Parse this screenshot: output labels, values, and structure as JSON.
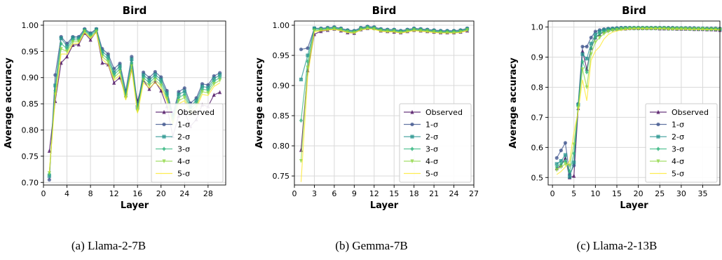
{
  "legend_labels": [
    "Observed",
    "1-σ",
    "2-σ",
    "3-σ",
    "4-σ",
    "5-σ"
  ],
  "legend_colors": [
    "#46085c",
    "#3b528b",
    "#21918c",
    "#2fb47c",
    "#8fd744",
    "#fde725"
  ],
  "chart_data": [
    {
      "type": "line",
      "title": "Bird",
      "xlabel": "Layer",
      "ylabel": "Average accuracy",
      "caption": "(a) Llama-2-7B",
      "xlim": [
        0,
        31
      ],
      "ylim": [
        0.695,
        1.008
      ],
      "xticks": [
        0,
        4,
        8,
        12,
        16,
        20,
        24,
        28
      ],
      "yticks": [
        0.7,
        0.75,
        0.8,
        0.85,
        0.9,
        0.95,
        1.0
      ],
      "ytick_labels": [
        "0.70",
        "0.75",
        "0.80",
        "0.85",
        "0.90",
        "0.95",
        "1.00"
      ],
      "grid": true,
      "legend_position": "lower-right",
      "x": [
        1,
        2,
        3,
        4,
        5,
        6,
        7,
        8,
        9,
        10,
        11,
        12,
        13,
        14,
        15,
        16,
        17,
        18,
        19,
        20,
        21,
        22,
        23,
        24,
        25,
        26,
        27,
        28,
        29,
        30
      ],
      "series": [
        {
          "name": "Observed",
          "values": [
            0.76,
            0.855,
            0.928,
            0.94,
            0.962,
            0.963,
            0.985,
            0.972,
            0.988,
            0.928,
            0.925,
            0.89,
            0.9,
            0.866,
            0.915,
            0.855,
            0.895,
            0.878,
            0.892,
            0.875,
            0.845,
            0.788,
            0.827,
            0.835,
            0.807,
            0.82,
            0.848,
            0.845,
            0.867,
            0.872
          ]
        },
        {
          "name": "1-σ",
          "values": [
            0.705,
            0.905,
            0.978,
            0.965,
            0.978,
            0.978,
            0.993,
            0.985,
            0.993,
            0.955,
            0.945,
            0.917,
            0.927,
            0.875,
            0.94,
            0.846,
            0.91,
            0.9,
            0.911,
            0.901,
            0.875,
            0.829,
            0.873,
            0.88,
            0.851,
            0.861,
            0.888,
            0.886,
            0.903,
            0.909
          ]
        },
        {
          "name": "2-σ",
          "values": [
            0.712,
            0.885,
            0.975,
            0.96,
            0.976,
            0.975,
            0.991,
            0.983,
            0.992,
            0.95,
            0.94,
            0.91,
            0.922,
            0.87,
            0.935,
            0.844,
            0.905,
            0.895,
            0.906,
            0.896,
            0.87,
            0.825,
            0.868,
            0.874,
            0.846,
            0.856,
            0.883,
            0.881,
            0.898,
            0.905
          ]
        },
        {
          "name": "3-σ",
          "values": [
            0.716,
            0.875,
            0.965,
            0.955,
            0.972,
            0.972,
            0.99,
            0.98,
            0.99,
            0.945,
            0.935,
            0.905,
            0.917,
            0.865,
            0.928,
            0.84,
            0.9,
            0.89,
            0.901,
            0.891,
            0.865,
            0.82,
            0.862,
            0.868,
            0.841,
            0.851,
            0.878,
            0.876,
            0.893,
            0.9
          ]
        },
        {
          "name": "4-σ",
          "values": [
            0.718,
            0.868,
            0.955,
            0.95,
            0.968,
            0.969,
            0.988,
            0.977,
            0.988,
            0.94,
            0.93,
            0.9,
            0.911,
            0.861,
            0.922,
            0.836,
            0.895,
            0.885,
            0.896,
            0.885,
            0.86,
            0.815,
            0.856,
            0.862,
            0.836,
            0.846,
            0.873,
            0.871,
            0.888,
            0.895
          ]
        },
        {
          "name": "5-σ",
          "values": [
            0.72,
            0.86,
            0.945,
            0.945,
            0.964,
            0.966,
            0.986,
            0.975,
            0.986,
            0.935,
            0.925,
            0.895,
            0.905,
            0.857,
            0.916,
            0.832,
            0.89,
            0.88,
            0.891,
            0.88,
            0.855,
            0.81,
            0.85,
            0.856,
            0.831,
            0.841,
            0.868,
            0.866,
            0.883,
            0.89
          ]
        }
      ]
    },
    {
      "type": "line",
      "title": "Bird",
      "xlabel": "Layer",
      "ylabel": "Average accuracy",
      "caption": "(b) Gemma-7B",
      "xlim": [
        0,
        27
      ],
      "ylim": [
        0.735,
        1.007
      ],
      "xticks": [
        0,
        3,
        6,
        9,
        12,
        15,
        18,
        21,
        24,
        27
      ],
      "yticks": [
        0.75,
        0.8,
        0.85,
        0.9,
        0.95,
        1.0
      ],
      "ytick_labels": [
        "0.75",
        "0.80",
        "0.85",
        "0.90",
        "0.95",
        "1.00"
      ],
      "grid": true,
      "legend_position": "lower-right",
      "x": [
        1,
        2,
        3,
        4,
        5,
        6,
        7,
        8,
        9,
        10,
        11,
        12,
        13,
        14,
        15,
        16,
        17,
        18,
        19,
        20,
        21,
        22,
        23,
        24,
        25,
        26
      ],
      "series": [
        {
          "name": "Observed",
          "values": [
            0.793,
            0.925,
            0.985,
            0.99,
            0.992,
            0.994,
            0.991,
            0.988,
            0.987,
            0.993,
            0.995,
            0.995,
            0.991,
            0.99,
            0.989,
            0.988,
            0.99,
            0.992,
            0.991,
            0.99,
            0.989,
            0.988,
            0.988,
            0.988,
            0.989,
            0.991
          ]
        },
        {
          "name": "1-σ",
          "values": [
            0.96,
            0.962,
            0.995,
            0.995,
            0.996,
            0.997,
            0.995,
            0.992,
            0.991,
            0.996,
            0.998,
            0.997,
            0.994,
            0.993,
            0.993,
            0.991,
            0.993,
            0.995,
            0.994,
            0.993,
            0.992,
            0.991,
            0.991,
            0.991,
            0.992,
            0.995
          ]
        },
        {
          "name": "2-σ",
          "values": [
            0.91,
            0.95,
            0.995,
            0.994,
            0.995,
            0.996,
            0.994,
            0.991,
            0.99,
            0.995,
            0.997,
            0.996,
            0.993,
            0.992,
            0.992,
            0.99,
            0.992,
            0.994,
            0.993,
            0.992,
            0.991,
            0.99,
            0.99,
            0.99,
            0.991,
            0.994
          ]
        },
        {
          "name": "3-σ",
          "values": [
            0.842,
            0.94,
            0.993,
            0.993,
            0.994,
            0.995,
            0.993,
            0.99,
            0.989,
            0.994,
            0.996,
            0.995,
            0.992,
            0.991,
            0.991,
            0.989,
            0.991,
            0.993,
            0.992,
            0.991,
            0.99,
            0.989,
            0.989,
            0.989,
            0.99,
            0.993
          ]
        },
        {
          "name": "4-σ",
          "values": [
            0.775,
            0.93,
            0.991,
            0.992,
            0.993,
            0.994,
            0.992,
            0.989,
            0.988,
            0.993,
            0.995,
            0.994,
            0.991,
            0.99,
            0.99,
            0.988,
            0.99,
            0.992,
            0.991,
            0.99,
            0.989,
            0.988,
            0.988,
            0.988,
            0.989,
            0.992
          ]
        },
        {
          "name": "5-σ",
          "values": [
            0.74,
            0.915,
            0.989,
            0.991,
            0.992,
            0.993,
            0.991,
            0.988,
            0.987,
            0.992,
            0.994,
            0.993,
            0.99,
            0.989,
            0.989,
            0.987,
            0.989,
            0.991,
            0.99,
            0.989,
            0.988,
            0.987,
            0.987,
            0.987,
            0.988,
            0.991
          ]
        }
      ]
    },
    {
      "type": "line",
      "title": "Bird",
      "xlabel": "Layer",
      "ylabel": "Average accuracy",
      "caption": "(c) Llama-2-13B",
      "xlim": [
        -1,
        39
      ],
      "ylim": [
        0.475,
        1.02
      ],
      "xticks": [
        0,
        5,
        10,
        15,
        20,
        25,
        30,
        35
      ],
      "yticks": [
        0.5,
        0.6,
        0.7,
        0.8,
        0.9,
        1.0
      ],
      "ytick_labels": [
        "0.5",
        "0.6",
        "0.7",
        "0.8",
        "0.9",
        "1.0"
      ],
      "grid": true,
      "legend_position": "lower-right",
      "x": [
        1,
        2,
        3,
        4,
        5,
        6,
        7,
        8,
        9,
        10,
        11,
        12,
        13,
        14,
        15,
        16,
        17,
        18,
        19,
        20,
        21,
        22,
        23,
        24,
        25,
        26,
        27,
        28,
        29,
        30,
        31,
        32,
        33,
        34,
        35,
        36,
        37,
        38,
        39
      ],
      "series": [
        {
          "name": "Observed",
          "values": [
            0.53,
            0.54,
            0.565,
            0.5,
            0.505,
            0.73,
            0.92,
            0.86,
            0.93,
            0.965,
            0.975,
            0.985,
            0.99,
            0.993,
            0.994,
            0.995,
            0.995,
            0.996,
            0.996,
            0.996,
            0.996,
            0.996,
            0.996,
            0.996,
            0.995,
            0.995,
            0.995,
            0.995,
            0.994,
            0.994,
            0.994,
            0.994,
            0.993,
            0.993,
            0.993,
            0.992,
            0.992,
            0.991,
            0.99
          ]
        },
        {
          "name": "1-σ",
          "values": [
            0.565,
            0.59,
            0.615,
            0.51,
            0.54,
            0.745,
            0.935,
            0.935,
            0.965,
            0.985,
            0.99,
            0.993,
            0.995,
            0.996,
            0.997,
            0.998,
            0.998,
            0.998,
            0.998,
            0.998,
            0.998,
            0.998,
            0.998,
            0.998,
            0.998,
            0.998,
            0.998,
            0.998,
            0.997,
            0.997,
            0.997,
            0.997,
            0.997,
            0.996,
            0.996,
            0.996,
            0.996,
            0.996,
            0.995
          ]
        },
        {
          "name": "2-σ",
          "values": [
            0.545,
            0.555,
            0.575,
            0.502,
            0.55,
            0.742,
            0.91,
            0.895,
            0.945,
            0.975,
            0.985,
            0.99,
            0.993,
            0.994,
            0.995,
            0.996,
            0.997,
            0.997,
            0.997,
            0.997,
            0.997,
            0.997,
            0.997,
            0.997,
            0.997,
            0.997,
            0.996,
            0.996,
            0.996,
            0.996,
            0.996,
            0.995,
            0.995,
            0.995,
            0.995,
            0.994,
            0.994,
            0.994,
            0.993
          ]
        },
        {
          "name": "3-σ",
          "values": [
            0.535,
            0.545,
            0.555,
            0.52,
            0.58,
            0.74,
            0.885,
            0.85,
            0.93,
            0.965,
            0.978,
            0.985,
            0.99,
            0.992,
            0.993,
            0.994,
            0.995,
            0.996,
            0.996,
            0.996,
            0.996,
            0.996,
            0.996,
            0.996,
            0.996,
            0.996,
            0.995,
            0.995,
            0.995,
            0.995,
            0.995,
            0.994,
            0.994,
            0.994,
            0.994,
            0.993,
            0.993,
            0.993,
            0.992
          ]
        },
        {
          "name": "4-σ",
          "values": [
            0.525,
            0.535,
            0.545,
            0.54,
            0.61,
            0.73,
            0.86,
            0.8,
            0.91,
            0.95,
            0.965,
            0.978,
            0.985,
            0.989,
            0.991,
            0.993,
            0.994,
            0.995,
            0.995,
            0.995,
            0.995,
            0.995,
            0.995,
            0.995,
            0.995,
            0.995,
            0.994,
            0.994,
            0.994,
            0.994,
            0.994,
            0.993,
            0.993,
            0.993,
            0.993,
            0.992,
            0.992,
            0.992,
            0.991
          ]
        },
        {
          "name": "5-σ",
          "values": [
            0.51,
            0.52,
            0.535,
            0.555,
            0.65,
            0.72,
            0.825,
            0.755,
            0.89,
            0.92,
            0.935,
            0.96,
            0.975,
            0.983,
            0.987,
            0.99,
            0.992,
            0.993,
            0.994,
            0.994,
            0.994,
            0.994,
            0.994,
            0.994,
            0.994,
            0.994,
            0.993,
            0.993,
            0.993,
            0.993,
            0.993,
            0.992,
            0.992,
            0.992,
            0.992,
            0.991,
            0.991,
            0.991,
            0.99
          ]
        }
      ]
    }
  ]
}
